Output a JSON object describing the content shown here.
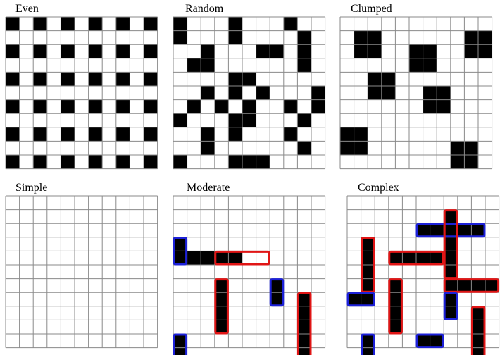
{
  "panels": [
    {
      "label": "Even",
      "blacks": [
        [
          0,
          0
        ],
        [
          0,
          2
        ],
        [
          0,
          4
        ],
        [
          0,
          6
        ],
        [
          0,
          8
        ],
        [
          0,
          10
        ],
        [
          2,
          0
        ],
        [
          2,
          2
        ],
        [
          2,
          4
        ],
        [
          2,
          6
        ],
        [
          2,
          8
        ],
        [
          2,
          10
        ],
        [
          4,
          0
        ],
        [
          4,
          2
        ],
        [
          4,
          4
        ],
        [
          4,
          6
        ],
        [
          4,
          8
        ],
        [
          4,
          10
        ],
        [
          6,
          0
        ],
        [
          6,
          2
        ],
        [
          6,
          4
        ],
        [
          6,
          6
        ],
        [
          6,
          8
        ],
        [
          6,
          10
        ],
        [
          8,
          0
        ],
        [
          8,
          2
        ],
        [
          8,
          4
        ],
        [
          8,
          6
        ],
        [
          8,
          8
        ],
        [
          8,
          10
        ],
        [
          10,
          0
        ],
        [
          10,
          2
        ],
        [
          10,
          4
        ],
        [
          10,
          6
        ],
        [
          10,
          8
        ],
        [
          10,
          10
        ]
      ],
      "boxes": []
    },
    {
      "label": "Random",
      "blacks": [
        [
          0,
          0
        ],
        [
          4,
          0
        ],
        [
          8,
          0
        ],
        [
          0,
          1
        ],
        [
          4,
          1
        ],
        [
          9,
          1
        ],
        [
          2,
          2
        ],
        [
          6,
          2
        ],
        [
          7,
          2
        ],
        [
          9,
          2
        ],
        [
          1,
          3
        ],
        [
          2,
          3
        ],
        [
          9,
          3
        ],
        [
          4,
          4
        ],
        [
          5,
          4
        ],
        [
          2,
          5
        ],
        [
          4,
          5
        ],
        [
          6,
          5
        ],
        [
          10,
          5
        ],
        [
          1,
          6
        ],
        [
          3,
          6
        ],
        [
          5,
          6
        ],
        [
          8,
          6
        ],
        [
          10,
          6
        ],
        [
          0,
          7
        ],
        [
          5,
          7
        ],
        [
          4,
          7
        ],
        [
          9,
          7
        ],
        [
          2,
          8
        ],
        [
          4,
          8
        ],
        [
          8,
          8
        ],
        [
          2,
          9
        ],
        [
          9,
          9
        ],
        [
          0,
          10
        ],
        [
          4,
          10
        ],
        [
          5,
          10
        ],
        [
          6,
          10
        ]
      ],
      "boxes": []
    },
    {
      "label": "Clumped",
      "blacks": [
        [
          1,
          1
        ],
        [
          2,
          1
        ],
        [
          1,
          2
        ],
        [
          2,
          2
        ],
        [
          5,
          2
        ],
        [
          6,
          2
        ],
        [
          5,
          3
        ],
        [
          6,
          3
        ],
        [
          9,
          1
        ],
        [
          10,
          1
        ],
        [
          9,
          2
        ],
        [
          10,
          2
        ],
        [
          2,
          4
        ],
        [
          3,
          4
        ],
        [
          2,
          5
        ],
        [
          3,
          5
        ],
        [
          6,
          5
        ],
        [
          7,
          5
        ],
        [
          6,
          6
        ],
        [
          7,
          6
        ],
        [
          0,
          8
        ],
        [
          1,
          8
        ],
        [
          0,
          9
        ],
        [
          1,
          9
        ],
        [
          8,
          9
        ],
        [
          9,
          9
        ],
        [
          8,
          10
        ],
        [
          9,
          10
        ]
      ],
      "boxes": []
    },
    {
      "label": "Simple",
      "blacks": [],
      "boxes": []
    },
    {
      "label": "Moderate",
      "blacks": [
        [
          1,
          4
        ],
        [
          2,
          4
        ],
        [
          3,
          4
        ],
        [
          4,
          4
        ],
        [
          3,
          6
        ],
        [
          3,
          7
        ],
        [
          3,
          8
        ],
        [
          3,
          9
        ],
        [
          9,
          7
        ],
        [
          9,
          8
        ],
        [
          9,
          9
        ],
        [
          9,
          10
        ],
        [
          9,
          11
        ],
        [
          7,
          6
        ],
        [
          7,
          7
        ],
        [
          0,
          3
        ],
        [
          0,
          4
        ],
        [
          0,
          10
        ],
        [
          0,
          11
        ]
      ],
      "boxes": [
        {
          "c": 0,
          "r": 3,
          "w": 1,
          "h": 2,
          "color": "#1d21d8"
        },
        {
          "c": 3,
          "r": 4,
          "w": 4,
          "h": 1,
          "color": "#e01515"
        },
        {
          "c": 3,
          "r": 6,
          "w": 1,
          "h": 4,
          "color": "#e01515"
        },
        {
          "c": 7,
          "r": 6,
          "w": 1,
          "h": 2,
          "color": "#1d21d8"
        },
        {
          "c": 9,
          "r": 7,
          "w": 1,
          "h": 5,
          "color": "#e01515"
        },
        {
          "c": 0,
          "r": 10,
          "w": 1,
          "h": 2,
          "color": "#1d21d8"
        }
      ]
    },
    {
      "label": "Complex",
      "blacks": [
        [
          5,
          2
        ],
        [
          6,
          2
        ],
        [
          7,
          2
        ],
        [
          8,
          2
        ],
        [
          9,
          2
        ],
        [
          7,
          1
        ],
        [
          7,
          2
        ],
        [
          7,
          3
        ],
        [
          7,
          4
        ],
        [
          7,
          5
        ],
        [
          1,
          3
        ],
        [
          1,
          4
        ],
        [
          1,
          5
        ],
        [
          1,
          6
        ],
        [
          3,
          4
        ],
        [
          4,
          4
        ],
        [
          5,
          4
        ],
        [
          6,
          4
        ],
        [
          7,
          6
        ],
        [
          8,
          6
        ],
        [
          9,
          6
        ],
        [
          10,
          6
        ],
        [
          0,
          7
        ],
        [
          1,
          7
        ],
        [
          3,
          6
        ],
        [
          3,
          7
        ],
        [
          3,
          8
        ],
        [
          3,
          9
        ],
        [
          7,
          7
        ],
        [
          7,
          8
        ],
        [
          9,
          8
        ],
        [
          9,
          9
        ],
        [
          9,
          10
        ],
        [
          9,
          11
        ],
        [
          5,
          10
        ],
        [
          6,
          10
        ],
        [
          1,
          10
        ],
        [
          1,
          11
        ]
      ],
      "boxes": [
        {
          "c": 5,
          "r": 2,
          "w": 5,
          "h": 1,
          "color": "#1d21d8"
        },
        {
          "c": 7,
          "r": 1,
          "w": 1,
          "h": 5,
          "color": "#e01515"
        },
        {
          "c": 1,
          "r": 3,
          "w": 1,
          "h": 4,
          "color": "#e01515"
        },
        {
          "c": 3,
          "r": 4,
          "w": 4,
          "h": 1,
          "color": "#e01515"
        },
        {
          "c": 7,
          "r": 6,
          "w": 4,
          "h": 1,
          "color": "#e01515"
        },
        {
          "c": 0,
          "r": 7,
          "w": 2,
          "h": 1,
          "color": "#1d21d8"
        },
        {
          "c": 3,
          "r": 6,
          "w": 1,
          "h": 4,
          "color": "#e01515"
        },
        {
          "c": 7,
          "r": 7,
          "w": 1,
          "h": 2,
          "color": "#1d21d8"
        },
        {
          "c": 9,
          "r": 8,
          "w": 1,
          "h": 4,
          "color": "#e01515"
        },
        {
          "c": 5,
          "r": 10,
          "w": 2,
          "h": 1,
          "color": "#1d21d8"
        },
        {
          "c": 1,
          "r": 10,
          "w": 1,
          "h": 2,
          "color": "#1d21d8"
        }
      ]
    }
  ]
}
